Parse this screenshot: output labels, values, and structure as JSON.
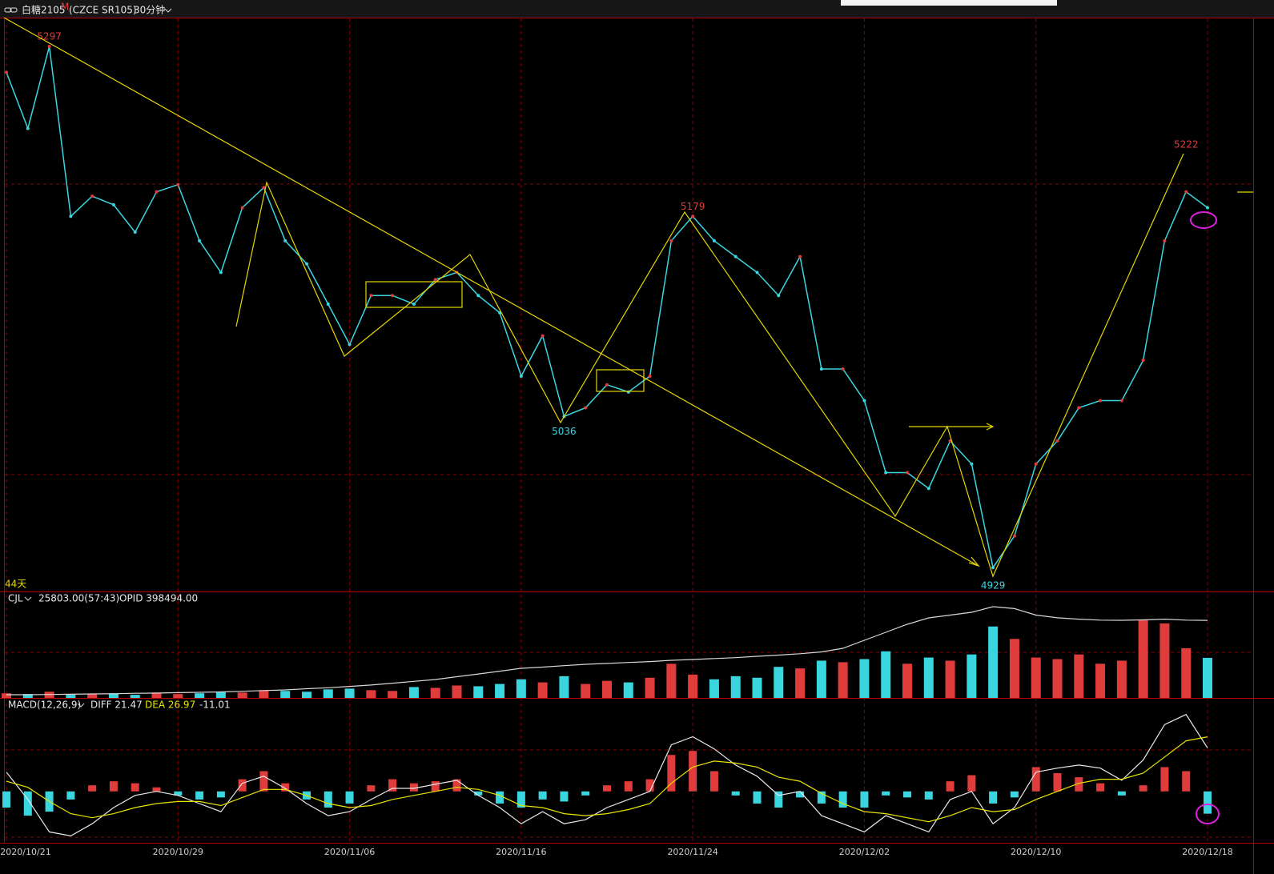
{
  "header": {
    "title": "白糖2105",
    "superscript": "M",
    "code": "(CZCE SR105)",
    "period": "30分钟"
  },
  "chart_data": [
    {
      "type": "line",
      "annotation": "44天",
      "color": "#3ad6e0",
      "categories": [
        "2020/10/21",
        null,
        null,
        null,
        null,
        null,
        null,
        null,
        "2020/10/29",
        null,
        null,
        null,
        null,
        null,
        null,
        null,
        "2020/11/06",
        null,
        null,
        null,
        null,
        null,
        null,
        null,
        "2020/11/16",
        null,
        null,
        null,
        null,
        null,
        null,
        null,
        "2020/11/24",
        null,
        null,
        null,
        null,
        null,
        null,
        null,
        "2020/12/02",
        null,
        null,
        null,
        null,
        null,
        null,
        null,
        "2020/12/10",
        null,
        null,
        null,
        null,
        null,
        null,
        null,
        "2020/12/18"
      ],
      "values": [
        5279,
        5240,
        5297,
        5179,
        5193,
        5187,
        5168,
        5196,
        5201,
        5162,
        5140,
        5185,
        5199,
        5162,
        5146,
        5118,
        5090,
        5124,
        5124,
        5118,
        5135,
        5140,
        5124,
        5112,
        5068,
        5096,
        5040,
        5046,
        5062,
        5057,
        5068,
        5162,
        5179,
        5162,
        5151,
        5140,
        5124,
        5151,
        5073,
        5073,
        5051,
        5001,
        5001,
        4990,
        5023,
        5007,
        4935,
        4957,
        5007,
        5023,
        5046,
        5051,
        5051,
        5079,
        5162,
        5196,
        5185
      ],
      "peaks": [
        null,
        null,
        5297,
        null,
        null,
        null,
        null,
        null,
        null,
        null,
        null,
        null,
        null,
        null,
        null,
        null,
        null,
        null,
        null,
        null,
        null,
        null,
        null,
        null,
        null,
        null,
        5036,
        null,
        null,
        null,
        null,
        null,
        5179,
        null,
        null,
        null,
        null,
        null,
        null,
        null,
        null,
        null,
        null,
        null,
        null,
        null,
        4929,
        null,
        null,
        null,
        null,
        null,
        null,
        null,
        null,
        5222,
        null
      ],
      "ylim": [
        4919,
        5317
      ],
      "up_color": "#e03c3c",
      "down_color": "#3ad6e0"
    },
    {
      "type": "bar",
      "title": "CJL",
      "subtitle": "25803.00(57:43)",
      "values": [
        3000,
        2500,
        4000,
        2000,
        2500,
        3000,
        2000,
        3500,
        2500,
        3000,
        4000,
        3500,
        5000,
        4500,
        4000,
        5500,
        6000,
        5000,
        4500,
        7000,
        6500,
        8000,
        7500,
        9000,
        12000,
        10000,
        14000,
        9000,
        11000,
        10000,
        13000,
        22000,
        15000,
        12000,
        14000,
        13000,
        20000,
        19000,
        24000,
        23000,
        25000,
        30000,
        22000,
        26000,
        24000,
        28000,
        46000,
        38000,
        26000,
        25000,
        28000,
        22000,
        24000,
        50000,
        48000,
        32000,
        25803
      ],
      "ylim": [
        0,
        67000
      ],
      "up_color": "#e03c3c",
      "down_color": "#3ad6e0",
      "series": [
        {
          "name": "OPID 398494.00",
          "color": "#d8d8d8",
          "axis": "y2",
          "values": [
            237000,
            237000,
            237500,
            238000,
            238700,
            239000,
            240000,
            240500,
            241500,
            242200,
            243000,
            244500,
            246000,
            247400,
            250000,
            252000,
            255000,
            258000,
            262000,
            266000,
            270000,
            276000,
            282000,
            288000,
            294300,
            297000,
            300000,
            303000,
            305000,
            307000,
            309000,
            311700,
            313500,
            315500,
            317500,
            320400,
            323000,
            326000,
            330000,
            337800,
            355100,
            372500,
            389900,
            403800,
            410000,
            416000,
            428100,
            424000,
            410000,
            404000,
            401000,
            399000,
            398600,
            399500,
            401000,
            399000,
            398494
          ]
        }
      ],
      "y2lim": [
        230000,
        456000
      ]
    },
    {
      "type": "macd",
      "title": "MACD(12,26,9)",
      "histogram_label": "-11.01",
      "series": [
        {
          "name": "DIFF 21.47",
          "color": "#e8e8e8",
          "values": [
            9.5,
            -4,
            -20,
            -22,
            -16,
            -8,
            -2,
            0,
            -2,
            -6,
            -10,
            4,
            7.5,
            1.5,
            -6,
            -12,
            -10,
            -4,
            1.5,
            1.5,
            3.5,
            5.5,
            -2,
            -8,
            -16,
            -10,
            -16,
            -14,
            -8,
            -4,
            0,
            23,
            27,
            21,
            13,
            7.5,
            -2,
            0,
            -12,
            -16,
            -20,
            -12,
            -16,
            -20,
            -4,
            0,
            -16,
            -8,
            9.5,
            11.5,
            13,
            11.5,
            5.5,
            15.5,
            33,
            38,
            21.47
          ]
        },
        {
          "name": "DEA 26.97",
          "color": "#e6e600",
          "values": [
            5,
            2,
            -5,
            -11,
            -13,
            -11,
            -8,
            -6,
            -5,
            -5,
            -7,
            -3,
            1,
            1,
            -2,
            -6,
            -8,
            -7,
            -4,
            -2,
            0,
            2,
            1,
            -2,
            -7,
            -8,
            -11,
            -12,
            -11,
            -9,
            -6,
            4,
            12,
            15,
            14,
            12,
            7,
            5,
            -1,
            -6,
            -10,
            -11,
            -13,
            -15,
            -12,
            -8,
            -10,
            -9,
            -4,
            0,
            4,
            6,
            6,
            9,
            17,
            25,
            26.97
          ]
        }
      ],
      "histogram": [
        -8,
        -12,
        -10,
        -4,
        3,
        5,
        4,
        2,
        -2,
        -4,
        -3,
        6,
        10,
        4,
        -4,
        -8,
        -6,
        3,
        6,
        4,
        5,
        6,
        -2,
        -6,
        -8,
        -4,
        -5,
        -2,
        3,
        5,
        6,
        18,
        20,
        10,
        -2,
        -6,
        -8,
        -3,
        -6,
        -8,
        -8,
        -2,
        -3,
        -4,
        5,
        8,
        -6,
        -3,
        12,
        9,
        7,
        4,
        -2,
        3,
        12,
        10,
        -11.01
      ],
      "ylim": [
        -25,
        45
      ],
      "up_color": "#e03c3c",
      "down_color": "#3ad6e0"
    }
  ]
}
